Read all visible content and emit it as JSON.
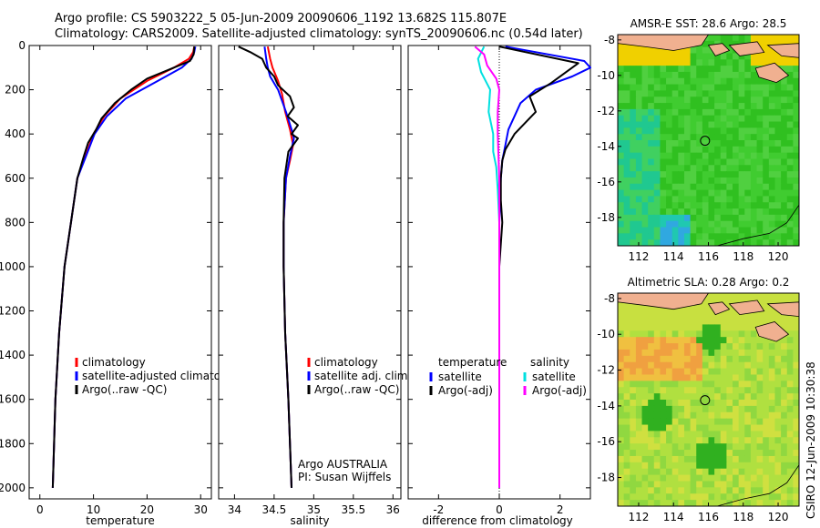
{
  "title_line1": "Argo profile: CS 5903222_5 05-Jun-2009 20090606_1192 13.682S 115.807E",
  "title_line2": "Climatology: CARS2009. Satellite-adjusted climatology: synTS_20090606.nc (0.54d later)",
  "side_stamp": "CSIRO 12-Jun-2009 10:30:38",
  "colors": {
    "climatology": "#ff0000",
    "satellite": "#0000ff",
    "argo": "#000000",
    "sal_satellite": "#00e0e0",
    "sal_argo": "#ff00ff",
    "land": "#f0b090"
  },
  "chart_data": [
    {
      "type": "line",
      "name": "temperature-profile",
      "xlabel": "temperature",
      "ylabel": "",
      "xlim": [
        -2,
        32
      ],
      "ylim": [
        2050,
        0
      ],
      "xticks": [
        0,
        10,
        20,
        30
      ],
      "yticks": [
        0,
        200,
        400,
        600,
        800,
        1000,
        1200,
        1400,
        1600,
        1800,
        2000
      ],
      "legend": {
        "position": "lower-right",
        "entries": [
          "climatology",
          "satellite-adjusted climatolog",
          "Argo(..raw -QC)"
        ]
      },
      "series": [
        {
          "name": "climatology",
          "color": "#ff0000",
          "points": [
            [
              28.8,
              5
            ],
            [
              28.6,
              30
            ],
            [
              27.8,
              60
            ],
            [
              25,
              100
            ],
            [
              20,
              160
            ],
            [
              15,
              240
            ],
            [
              12,
              320
            ],
            [
              10,
              400
            ],
            [
              8.5,
              500
            ],
            [
              7,
              600
            ],
            [
              5.8,
              800
            ],
            [
              4.6,
              1000
            ],
            [
              3.6,
              1300
            ],
            [
              2.9,
              1600
            ],
            [
              2.4,
              2000
            ]
          ]
        },
        {
          "name": "satellite-adjusted climatology",
          "color": "#0000ff",
          "points": [
            [
              29,
              5
            ],
            [
              28.8,
              30
            ],
            [
              28.3,
              60
            ],
            [
              26.5,
              100
            ],
            [
              22,
              160
            ],
            [
              16,
              240
            ],
            [
              12.5,
              320
            ],
            [
              10.2,
              400
            ],
            [
              8.6,
              500
            ],
            [
              7,
              600
            ],
            [
              5.8,
              800
            ],
            [
              4.6,
              1000
            ],
            [
              3.6,
              1300
            ],
            [
              2.9,
              1600
            ],
            [
              2.4,
              2000
            ]
          ]
        },
        {
          "name": "Argo(..raw -QC)",
          "color": "#000000",
          "points": [
            [
              28.8,
              5
            ],
            [
              28.7,
              40
            ],
            [
              28,
              70
            ],
            [
              25,
              100
            ],
            [
              20,
              150
            ],
            [
              17,
              200
            ],
            [
              14,
              260
            ],
            [
              11.5,
              330
            ],
            [
              10.5,
              380
            ],
            [
              9,
              440
            ],
            [
              8.2,
              500
            ],
            [
              7,
              600
            ],
            [
              5.8,
              800
            ],
            [
              4.6,
              1000
            ],
            [
              3.6,
              1300
            ],
            [
              2.9,
              1600
            ],
            [
              2.4,
              2000
            ]
          ]
        }
      ]
    },
    {
      "type": "line",
      "name": "salinity-profile",
      "xlabel": "salinity",
      "xlim": [
        33.8,
        36.1
      ],
      "ylim": [
        2050,
        0
      ],
      "xticks": [
        34,
        34.5,
        35,
        35.5,
        36
      ],
      "annotation": [
        "Argo AUSTRALIA",
        "PI: Susan Wijffels"
      ],
      "legend": {
        "position": "lower-right",
        "entries": [
          "climatology",
          "satellite adj. clim.",
          "Argo(..raw -QC)"
        ]
      },
      "series": [
        {
          "name": "climatology",
          "color": "#ff0000",
          "points": [
            [
              34.42,
              5
            ],
            [
              34.45,
              60
            ],
            [
              34.48,
              100
            ],
            [
              34.55,
              160
            ],
            [
              34.6,
              220
            ],
            [
              34.64,
              300
            ],
            [
              34.7,
              380
            ],
            [
              34.74,
              450
            ],
            [
              34.7,
              520
            ],
            [
              34.65,
              600
            ],
            [
              34.62,
              800
            ],
            [
              34.62,
              1000
            ],
            [
              34.64,
              1300
            ],
            [
              34.68,
              1600
            ],
            [
              34.72,
              2000
            ]
          ]
        },
        {
          "name": "satellite adj. clim.",
          "color": "#0000ff",
          "points": [
            [
              34.38,
              5
            ],
            [
              34.4,
              60
            ],
            [
              34.42,
              100
            ],
            [
              34.45,
              140
            ],
            [
              34.55,
              200
            ],
            [
              34.65,
              300
            ],
            [
              34.72,
              380
            ],
            [
              34.75,
              420
            ],
            [
              34.7,
              500
            ],
            [
              34.65,
              600
            ],
            [
              34.62,
              800
            ],
            [
              34.62,
              1000
            ],
            [
              34.64,
              1300
            ],
            [
              34.68,
              1600
            ],
            [
              34.72,
              2000
            ]
          ]
        },
        {
          "name": "Argo(..raw -QC)",
          "color": "#000000",
          "points": [
            [
              34.05,
              5
            ],
            [
              34.2,
              30
            ],
            [
              34.35,
              60
            ],
            [
              34.4,
              100
            ],
            [
              34.5,
              140
            ],
            [
              34.55,
              180
            ],
            [
              34.7,
              230
            ],
            [
              34.75,
              280
            ],
            [
              34.67,
              320
            ],
            [
              34.8,
              360
            ],
            [
              34.72,
              400
            ],
            [
              34.8,
              420
            ],
            [
              34.68,
              480
            ],
            [
              34.63,
              600
            ],
            [
              34.62,
              800
            ],
            [
              34.62,
              1000
            ],
            [
              34.64,
              1300
            ],
            [
              34.68,
              1600
            ],
            [
              34.72,
              2000
            ]
          ]
        }
      ]
    },
    {
      "type": "line",
      "name": "difference-profile",
      "xlabel": "difference from climatology",
      "xlim": [
        -3,
        3
      ],
      "ylim": [
        2050,
        0
      ],
      "xticks": [
        -2,
        0,
        2
      ],
      "legend": {
        "position": "lower",
        "headers": [
          "temperature",
          "salinity"
        ],
        "entries": [
          "satellite",
          "Argo(-adj)",
          "satellite",
          "Argo(-adj)"
        ]
      },
      "series": [
        {
          "name": "temperature satellite",
          "color": "#0000ff",
          "points": [
            [
              0.2,
              5
            ],
            [
              2.8,
              70
            ],
            [
              3,
              100
            ],
            [
              2.4,
              140
            ],
            [
              1.2,
              200
            ],
            [
              0.7,
              260
            ],
            [
              0.5,
              320
            ],
            [
              0.3,
              380
            ],
            [
              0.2,
              450
            ],
            [
              0.1,
              520
            ],
            [
              0.05,
              600
            ],
            [
              0,
              800
            ],
            [
              0,
              1000
            ],
            [
              0,
              1300
            ],
            [
              0,
              1600
            ],
            [
              0,
              2000
            ]
          ]
        },
        {
          "name": "temperature Argo(-adj)",
          "color": "#000000",
          "points": [
            [
              0,
              5
            ],
            [
              2.6,
              80
            ],
            [
              2.2,
              120
            ],
            [
              1.7,
              170
            ],
            [
              1,
              230
            ],
            [
              1.2,
              300
            ],
            [
              0.5,
              400
            ],
            [
              0.2,
              470
            ],
            [
              0.1,
              520
            ],
            [
              0.05,
              600
            ],
            [
              0.05,
              700
            ],
            [
              0.1,
              800
            ],
            [
              0,
              1000
            ],
            [
              0,
              1300
            ],
            [
              0,
              1600
            ],
            [
              0,
              2000
            ]
          ]
        },
        {
          "name": "salinity satellite",
          "color": "#00e0e0",
          "points": [
            [
              -0.5,
              5
            ],
            [
              -0.7,
              60
            ],
            [
              -0.6,
              120
            ],
            [
              -0.3,
              200
            ],
            [
              -0.35,
              300
            ],
            [
              -0.2,
              400
            ],
            [
              -0.2,
              480
            ],
            [
              -0.1,
              550
            ],
            [
              -0.05,
              650
            ],
            [
              0,
              800
            ],
            [
              0,
              1000
            ],
            [
              0,
              1300
            ],
            [
              0,
              1600
            ],
            [
              0,
              2000
            ]
          ]
        },
        {
          "name": "salinity Argo(-adj)",
          "color": "#ff00ff",
          "points": [
            [
              -0.8,
              5
            ],
            [
              -0.5,
              40
            ],
            [
              -0.4,
              90
            ],
            [
              -0.1,
              150
            ],
            [
              0,
              200
            ],
            [
              -0.05,
              300
            ],
            [
              -0.05,
              400
            ],
            [
              0,
              600
            ],
            [
              0,
              800
            ],
            [
              0,
              1000
            ],
            [
              0,
              1300
            ],
            [
              0,
              1600
            ],
            [
              0,
              2000
            ]
          ]
        }
      ]
    },
    {
      "type": "heatmap",
      "name": "amsre-sst-map",
      "title": "AMSR-E SST: 28.6 Argo: 28.5",
      "xticks": [
        112,
        114,
        116,
        118,
        120
      ],
      "yticks": [
        -8,
        -10,
        -12,
        -14,
        -16,
        -18
      ],
      "xlim": [
        110.8,
        121.2
      ],
      "ylim": [
        -19.6,
        -7.7
      ],
      "argo_position": [
        115.807,
        -13.682
      ]
    },
    {
      "type": "heatmap",
      "name": "altimetric-sla-map",
      "title": "Altimetric SLA: 0.28 Argo: 0.2",
      "xticks": [
        112,
        114,
        116,
        118,
        120
      ],
      "yticks": [
        -8,
        -10,
        -12,
        -14,
        -16,
        -18
      ],
      "xlim": [
        110.8,
        121.2
      ],
      "ylim": [
        -19.6,
        -7.7
      ],
      "argo_position": [
        115.807,
        -13.682
      ]
    }
  ]
}
